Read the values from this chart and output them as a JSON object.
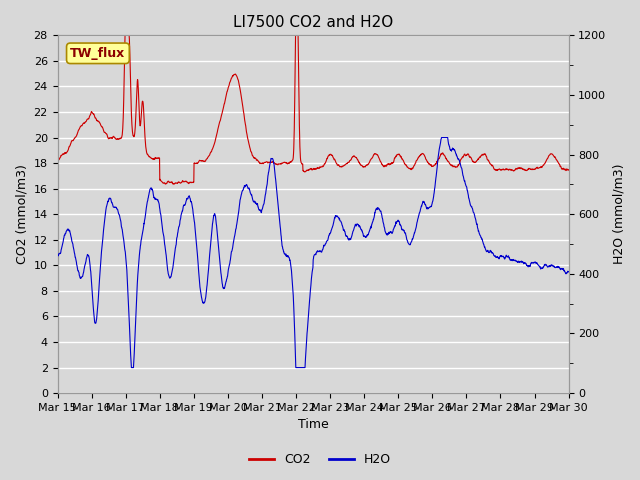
{
  "title": "LI7500 CO2 and H2O",
  "xlabel": "Time",
  "ylabel_left": "CO2 (mmol/m3)",
  "ylabel_right": "H2O (mmol/m3)",
  "ylim_left": [
    0,
    28
  ],
  "ylim_right": [
    0,
    1200
  ],
  "yticks_left": [
    0,
    2,
    4,
    6,
    8,
    10,
    12,
    14,
    16,
    18,
    20,
    22,
    24,
    26,
    28
  ],
  "yticks_right": [
    0,
    200,
    400,
    600,
    800,
    1000,
    1200
  ],
  "xtick_labels": [
    "Mar 15",
    "Mar 16",
    "Mar 17",
    "Mar 18",
    "Mar 19",
    "Mar 20",
    "Mar 21",
    "Mar 22",
    "Mar 23",
    "Mar 24",
    "Mar 25",
    "Mar 26",
    "Mar 27",
    "Mar 28",
    "Mar 29",
    "Mar 30"
  ],
  "co2_color": "#CC0000",
  "h2o_color": "#0000CC",
  "background_color": "#D8D8D8",
  "plot_bg_color": "#D8D8D8",
  "grid_color": "#FFFFFF",
  "annotation_text": "TW_flux",
  "annotation_bg": "#FFFF99",
  "annotation_border": "#AA8800",
  "legend_co2": "CO2",
  "legend_h2o": "H2O",
  "title_fontsize": 11,
  "axis_label_fontsize": 9,
  "tick_fontsize": 8
}
